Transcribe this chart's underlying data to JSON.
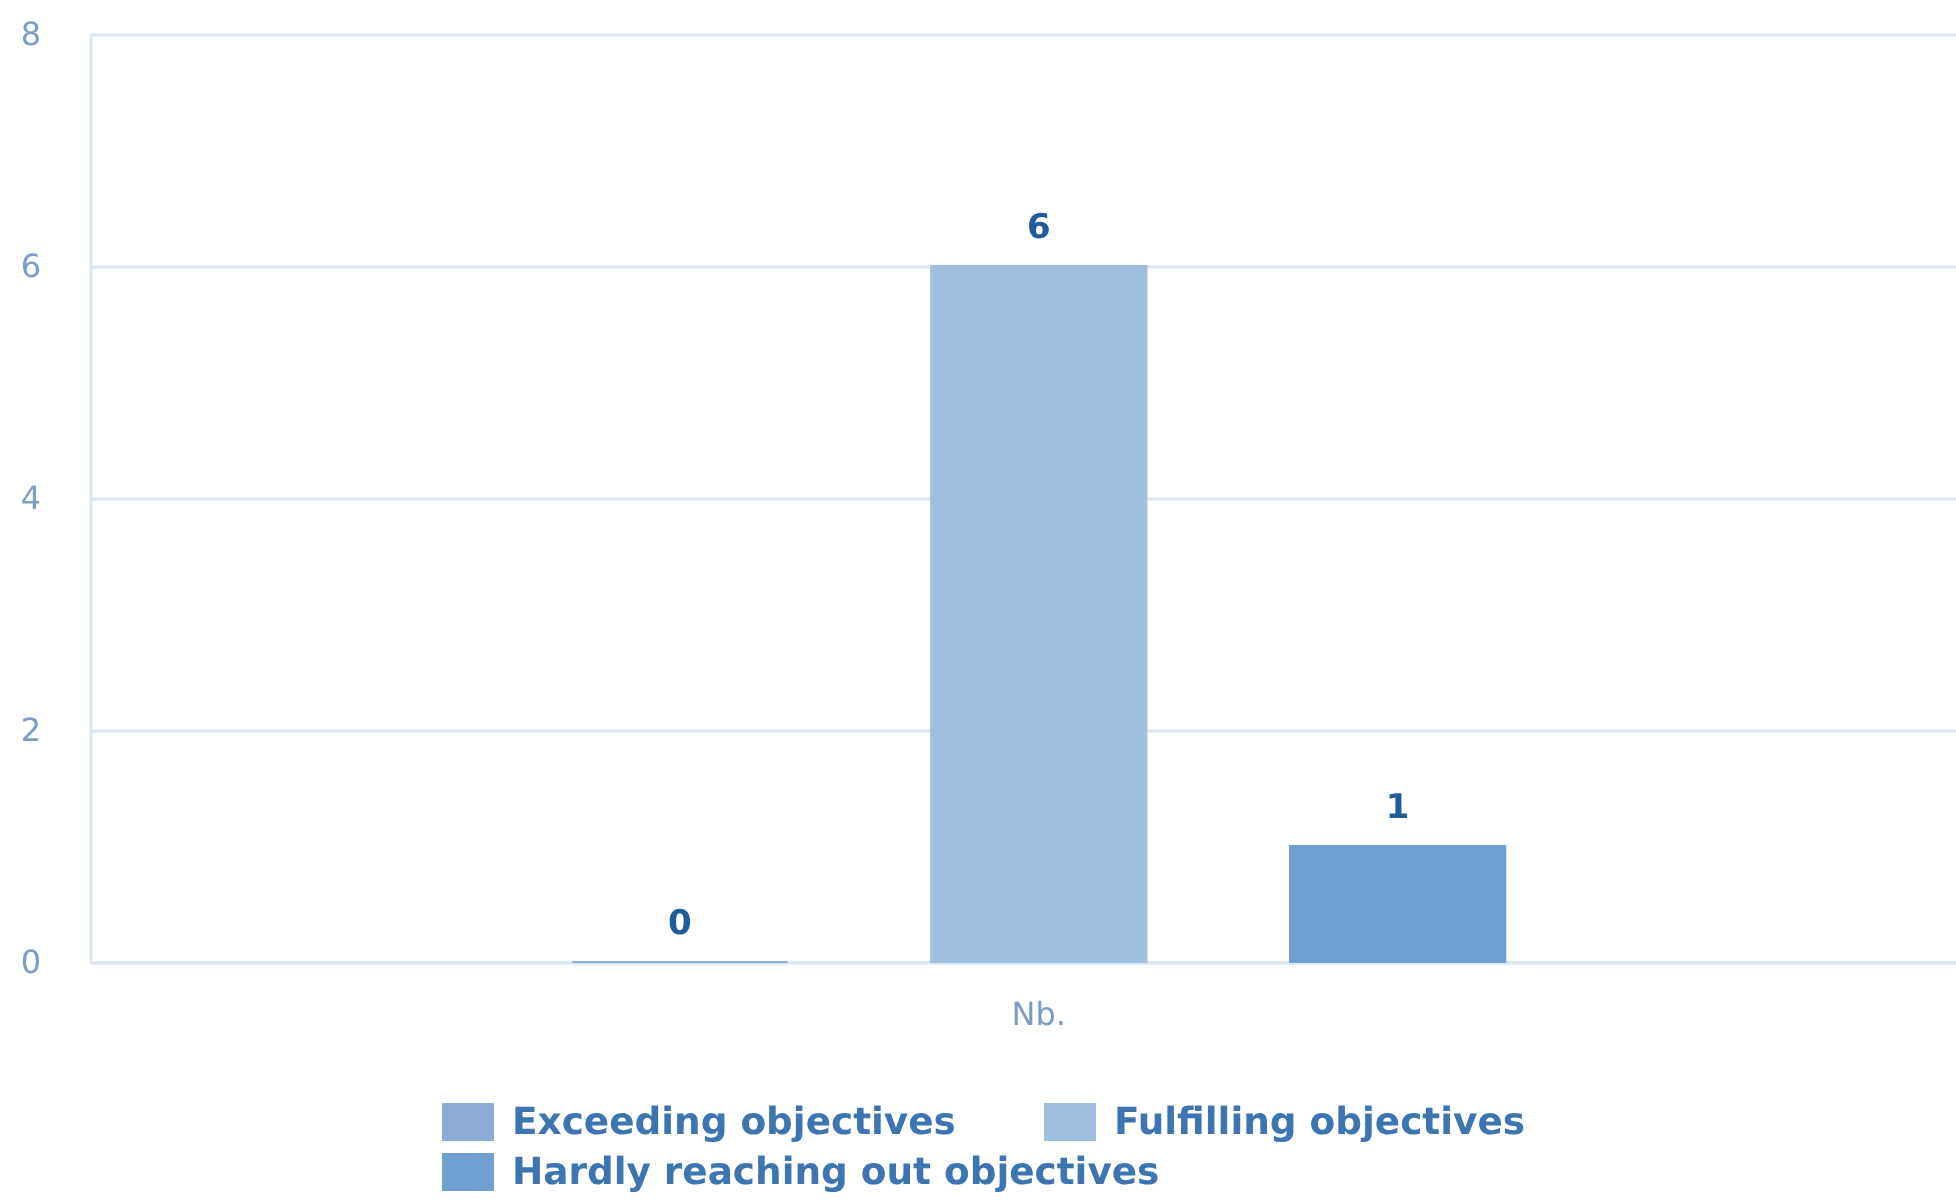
{
  "chart_data": {
    "type": "bar",
    "categories": [
      "Nb."
    ],
    "series": [
      {
        "name": "Exceeding objectives",
        "color": "#8caed6",
        "values": [
          0
        ]
      },
      {
        "name": "Fulfilling objectives",
        "color": "#9fbfde",
        "values": [
          6
        ]
      },
      {
        "name": "Hardly reaching out objectives",
        "color": "#70a0cf",
        "values": [
          1
        ]
      }
    ],
    "ylim": [
      0,
      8
    ],
    "yticks": [
      0,
      2,
      4,
      6,
      8
    ],
    "grid": "y",
    "legend": "bottom",
    "data_labels": true
  }
}
